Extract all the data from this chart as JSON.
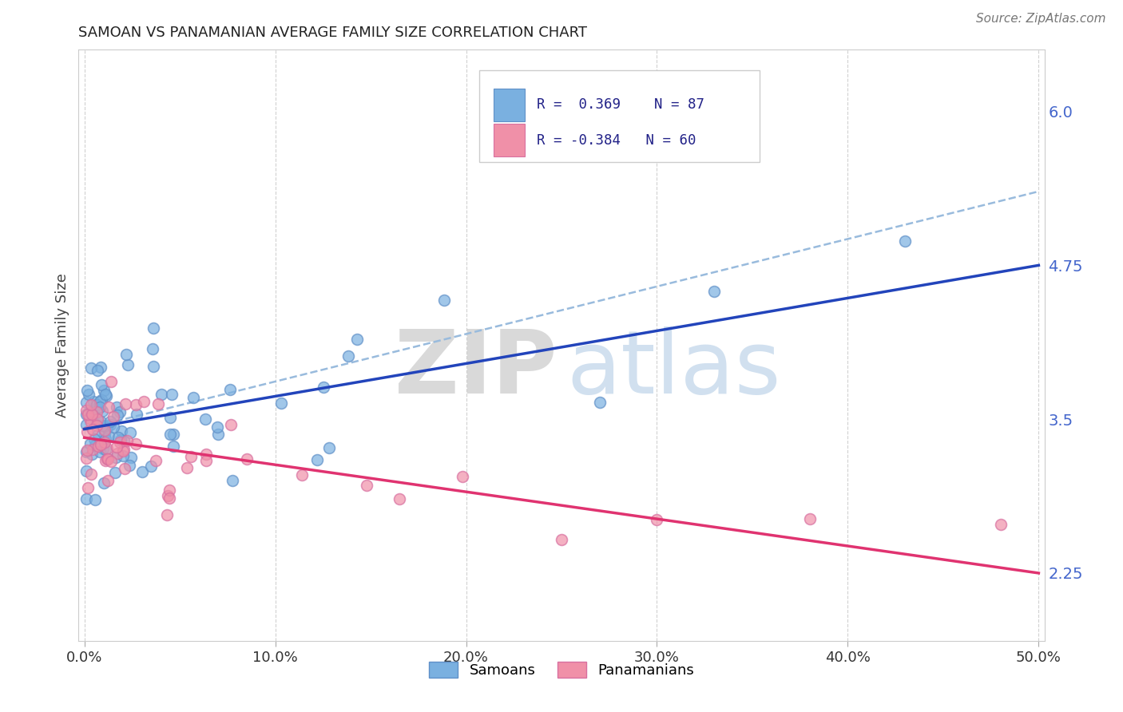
{
  "title": "SAMOAN VS PANAMANIAN AVERAGE FAMILY SIZE CORRELATION CHART",
  "source": "Source: ZipAtlas.com",
  "ylabel": "Average Family Size",
  "yticks": [
    2.25,
    3.5,
    4.75,
    6.0
  ],
  "background_color": "#ffffff",
  "grid_color": "#cccccc",
  "scatter_color_samoan": "#7ab0e0",
  "scatter_edge_samoan": "#6090c8",
  "scatter_color_panamanian": "#f090a8",
  "scatter_edge_panamanian": "#d870a0",
  "line_color_samoan": "#2244bb",
  "line_color_panamanian": "#e03370",
  "line_color_dashed": "#99bbdd",
  "watermark_zip_color": "#aaaaaa",
  "watermark_atlas_color": "#99bbdd",
  "ytick_color": "#4466cc",
  "xtick_color": "#333333",
  "samoan_line_x0": 0.0,
  "samoan_line_y0": 3.42,
  "samoan_line_x1": 0.5,
  "samoan_line_y1": 4.75,
  "pana_line_x0": 0.0,
  "pana_line_y0": 3.35,
  "pana_line_x1": 0.5,
  "pana_line_y1": 2.25,
  "dashed_line_x0": 0.0,
  "dashed_line_y0": 3.42,
  "dashed_line_x1": 0.5,
  "dashed_line_y1": 5.35,
  "xlim_min": -0.003,
  "xlim_max": 0.503,
  "ylim_min": 1.7,
  "ylim_max": 6.5
}
